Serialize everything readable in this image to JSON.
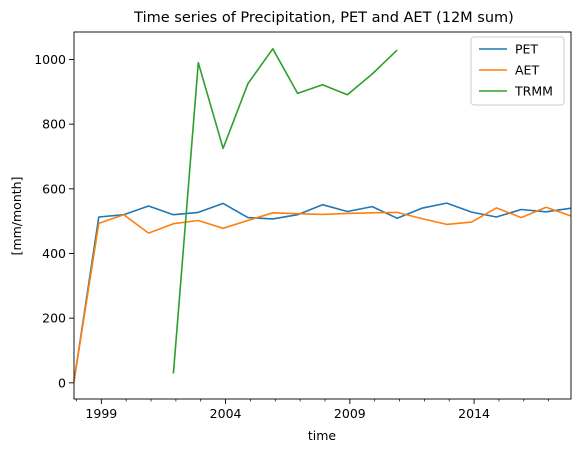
{
  "chart_data": {
    "type": "line",
    "title": "Time series of Precipitation, PET and AET (12M sum)",
    "xlabel": "time",
    "ylabel": "[mm/month]",
    "x_ticks": [
      "1999",
      "2004",
      "2009",
      "2014"
    ],
    "y_ticks": [
      "0",
      "200",
      "400",
      "600",
      "800",
      "1000"
    ],
    "xlim": [
      1997.9,
      2017.9
    ],
    "ylim": [
      -50,
      1085
    ],
    "grid": false,
    "legend_position": "top-right",
    "series": [
      {
        "name": "PET",
        "color": "#1f77b4",
        "x": [
          1997.9,
          1998.9,
          1999.9,
          2000.9,
          2001.9,
          2002.9,
          2003.9,
          2004.9,
          2005.9,
          2006.9,
          2007.9,
          2008.9,
          2009.9,
          2010.9,
          2011.9,
          2012.9,
          2013.9,
          2014.9,
          2015.9,
          2016.9,
          2017.9
        ],
        "values": [
          5,
          513,
          520,
          547,
          520,
          527,
          555,
          511,
          507,
          520,
          551,
          530,
          545,
          509,
          540,
          556,
          528,
          513,
          536,
          529,
          540
        ]
      },
      {
        "name": "AET",
        "color": "#ff7f0e",
        "x": [
          1997.9,
          1998.9,
          1999.9,
          2000.9,
          2001.9,
          2002.9,
          2003.9,
          2004.9,
          2005.9,
          2006.9,
          2007.9,
          2008.9,
          2009.9,
          2010.9,
          2011.9,
          2012.9,
          2013.9,
          2014.9,
          2015.9,
          2016.9,
          2017.9
        ],
        "values": [
          5,
          493,
          520,
          463,
          492,
          502,
          478,
          502,
          526,
          523,
          521,
          524,
          526,
          527,
          508,
          490,
          497,
          541,
          511,
          543,
          516
        ]
      },
      {
        "name": "TRMM",
        "color": "#2ca02c",
        "x": [
          2001.9,
          2002.9,
          2003.9,
          2004.9,
          2005.9,
          2006.9,
          2007.9,
          2008.9,
          2009.9,
          2010.9
        ],
        "values": [
          29,
          990,
          725,
          925,
          1033,
          895,
          922,
          891,
          955,
          1029
        ]
      }
    ]
  }
}
